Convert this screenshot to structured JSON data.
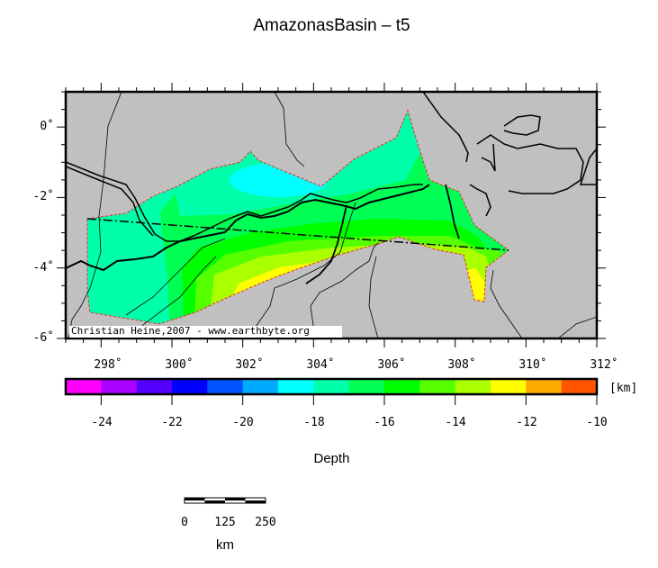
{
  "title": "AmazonasBasin – t5",
  "map": {
    "x_ticks": [
      "298˚",
      "300˚",
      "302˚",
      "304˚",
      "306˚",
      "308˚",
      "310˚",
      "312˚"
    ],
    "y_ticks": [
      "0˚",
      "-2˚",
      "-4˚",
      "-6˚"
    ],
    "lon_range": [
      297,
      312
    ],
    "lat_range": [
      -6,
      1
    ],
    "land_color": "#c0c0c0",
    "outline_color": "#ff0000",
    "credit": "Christian Heine,2007 - www.earthbyte.org"
  },
  "colorbar": {
    "unit": "[km]",
    "label": "Depth",
    "range": [
      -25,
      -10
    ],
    "tick_labels": [
      "-24",
      "-22",
      "-20",
      "-18",
      "-16",
      "-14",
      "-12",
      "-10"
    ],
    "colors": [
      "#ff00ff",
      "#aa00ff",
      "#5500ff",
      "#0000ff",
      "#0055ff",
      "#00aaff",
      "#00ffff",
      "#00ffaa",
      "#00ff55",
      "#00ff00",
      "#55ff00",
      "#aaff00",
      "#ffff00",
      "#ffaa00",
      "#ff5500"
    ]
  },
  "scalebar": {
    "labels": [
      "0",
      "125",
      "250"
    ],
    "unit": "km"
  }
}
